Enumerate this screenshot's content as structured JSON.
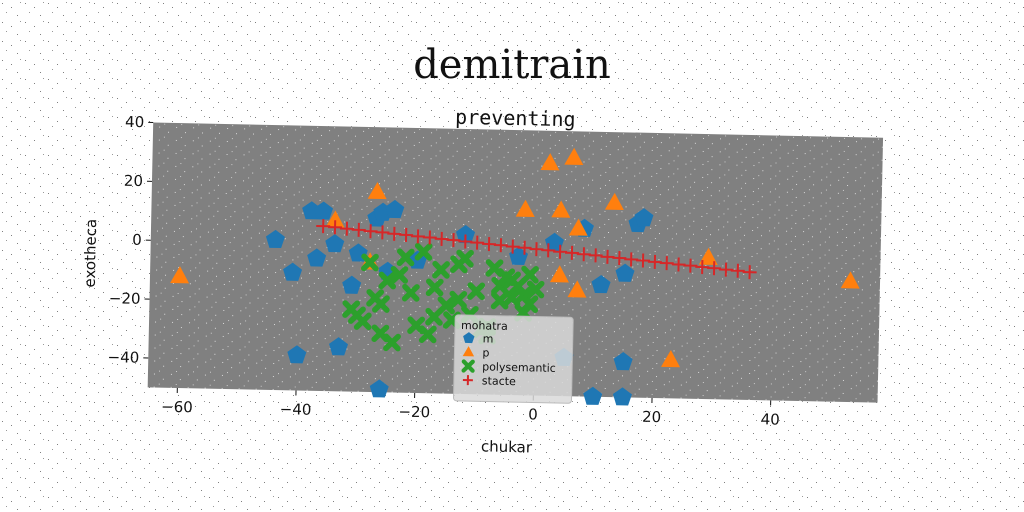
{
  "chart_data": {
    "type": "scatter",
    "title": "demitrain",
    "subtitle": "preventing",
    "xlabel": "chukar",
    "ylabel": "exotheca",
    "xlim": [
      -65,
      58
    ],
    "ylim": [
      -50,
      40
    ],
    "xticks": [
      -60,
      -40,
      -20,
      0,
      20,
      40
    ],
    "yticks": [
      -40,
      -20,
      0,
      20,
      40
    ],
    "grid": false,
    "legend_position": "lower-center",
    "legend_title": "mohatra",
    "colors": {
      "m": "#1f77b4",
      "p": "#ff7f0e",
      "polysemantic": "#2ca02c",
      "stacte": "#d62728",
      "background": "#808080"
    },
    "series": [
      {
        "name": "m",
        "marker": "pentagon",
        "x": [
          -44,
          -41,
          -38,
          -37,
          -36,
          -34,
          -31,
          -30,
          -27,
          -26,
          -25,
          -24,
          -20,
          -12,
          -3,
          3,
          5,
          8,
          11,
          15,
          17,
          18,
          15,
          -40,
          -33,
          -26,
          10,
          15
        ],
        "y": [
          1,
          -10,
          11,
          -5,
          11,
          0,
          -14,
          -3,
          9,
          11,
          -9,
          12,
          -5,
          4,
          -3,
          2,
          -37,
          7,
          -12,
          -8,
          9,
          11,
          -38,
          -38,
          -35,
          -49,
          -50,
          -50
        ]
      },
      {
        "name": "p",
        "marker": "triangle",
        "x": [
          -60,
          -27,
          -34,
          -28,
          -2,
          2,
          4,
          6,
          7,
          4,
          7,
          13,
          29,
          23,
          53
        ],
        "y": [
          -12,
          18,
          8,
          -6,
          13,
          29,
          13,
          31,
          7,
          -9,
          -14,
          16,
          -2,
          -37,
          -9
        ]
      },
      {
        "name": "polysemantic",
        "marker": "x",
        "x": [
          -31,
          -29,
          -26,
          -24,
          -20,
          -17,
          -15,
          -13,
          -11,
          -8,
          -6,
          -4,
          -2,
          -1,
          -28,
          -25,
          -22,
          -19,
          -16,
          -13,
          -10,
          -7,
          -5,
          -3,
          -26,
          -21,
          -18,
          -14,
          -9,
          -6,
          -2,
          0,
          -30,
          -27,
          -23,
          -17,
          -12,
          -8,
          -4,
          -1
        ],
        "y": [
          -22,
          -26,
          -30,
          -33,
          -27,
          -24,
          -20,
          -18,
          -23,
          -27,
          -13,
          -11,
          -16,
          -19,
          -6,
          -12,
          -4,
          -2,
          -8,
          -6,
          -15,
          -7,
          -10,
          -13,
          -20,
          -16,
          -30,
          -25,
          -28,
          -18,
          -22,
          -14,
          -24,
          -18,
          -10,
          -14,
          -4,
          -30,
          -17,
          -9
        ]
      },
      {
        "name": "stacte",
        "marker": "plus",
        "x": [
          -36,
          -34,
          -32,
          -30,
          -28,
          -26,
          -24,
          -22,
          -20,
          -18,
          -16,
          -14,
          -12,
          -10,
          -8,
          -6,
          -4,
          -2,
          0,
          2,
          4,
          6,
          8,
          10,
          12,
          14,
          16,
          18,
          20,
          22,
          24,
          26,
          28,
          30,
          32,
          34,
          36
        ],
        "y": [
          6,
          5.7,
          5.3,
          5,
          4.6,
          4.3,
          3.9,
          3.6,
          3.2,
          2.9,
          2.5,
          2.2,
          1.8,
          1.5,
          1.1,
          0.8,
          0.4,
          0.1,
          -0.3,
          -0.6,
          -1,
          -1.3,
          -1.7,
          -2,
          -2.4,
          -2.7,
          -3.1,
          -3.4,
          -3.8,
          -4.1,
          -4.5,
          -4.8,
          -5.2,
          -5.5,
          -5.9,
          -6.2,
          -6.6
        ]
      }
    ]
  }
}
